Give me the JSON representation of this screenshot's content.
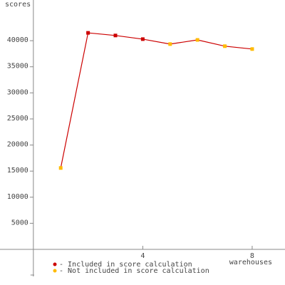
{
  "chart_data": {
    "type": "line",
    "y_label": "scores",
    "x_label": "warehouses",
    "x": [
      1,
      2,
      3,
      4,
      5,
      6,
      7,
      8
    ],
    "series": [
      {
        "color": "#cc0000",
        "values": [
          15600,
          41500,
          41000,
          40300,
          39350,
          40150,
          38950,
          38400
        ]
      }
    ],
    "point_colors": [
      "#ffbb00",
      "#cc0000",
      "#cc0000",
      "#cc0000",
      "#ffbb00",
      "#ffbb00",
      "#ffbb00",
      "#ffbb00"
    ],
    "legend": [
      {
        "name": "- Included in score calculation",
        "color": "#cc0000"
      },
      {
        "name": "- Not included in score calculation",
        "color": "#ffbb00"
      }
    ],
    "xlim": [
      -1.22,
      9.2
    ],
    "ylim": [
      -6830,
      47800
    ],
    "xticks": [
      4,
      8
    ],
    "yticks": [
      5000,
      10000,
      15000,
      20000,
      25000,
      30000,
      35000,
      40000
    ]
  }
}
